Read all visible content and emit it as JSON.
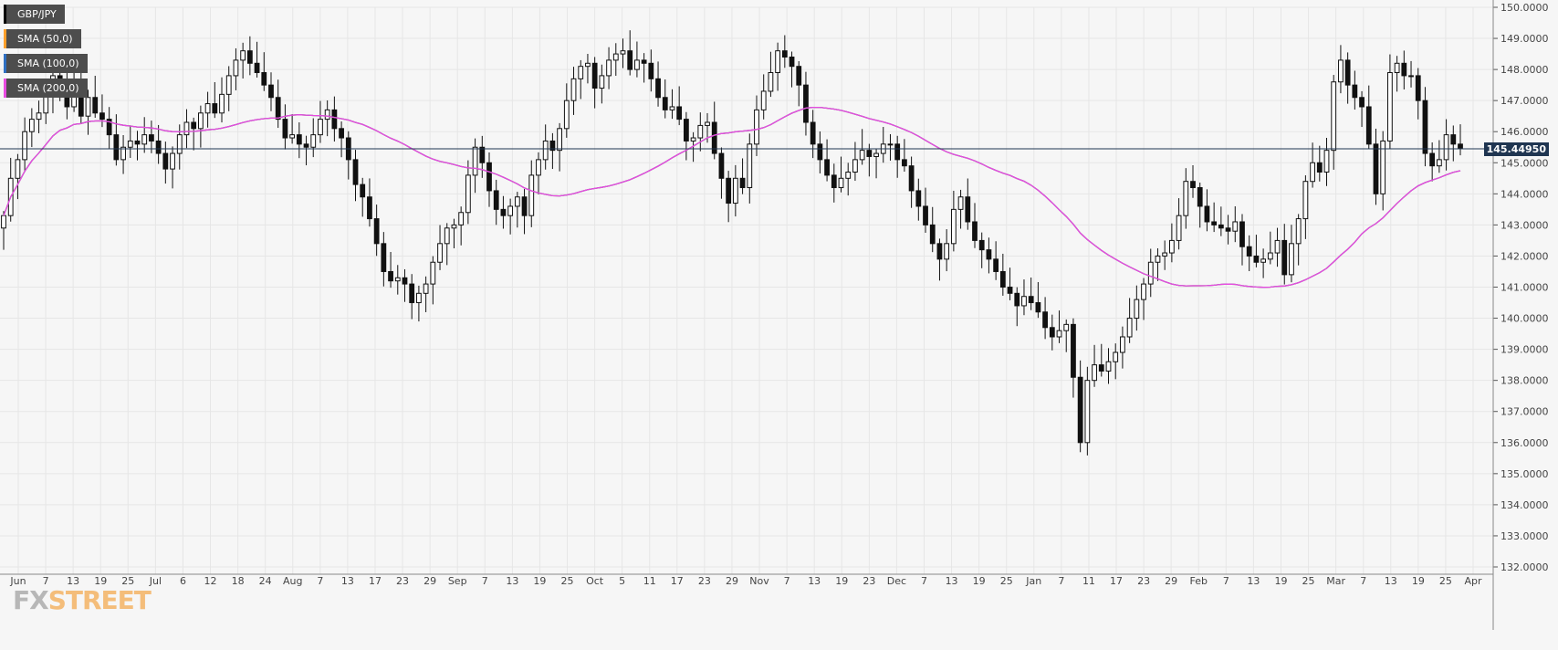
{
  "chart_data": {
    "type": "candlestick",
    "title": "",
    "ylim": [
      132.0,
      150.0
    ],
    "y_ticks": [
      "132.0000",
      "133.0000",
      "134.0000",
      "135.0000",
      "136.0000",
      "137.0000",
      "138.0000",
      "139.0000",
      "140.0000",
      "141.0000",
      "142.0000",
      "143.0000",
      "144.0000",
      "145.0000",
      "146.0000",
      "147.0000",
      "148.0000",
      "149.0000",
      "150.0000"
    ],
    "x_ticks": [
      "Jun",
      "7",
      "13",
      "19",
      "25",
      "Jul",
      "6",
      "12",
      "18",
      "24",
      "Aug",
      "7",
      "13",
      "17",
      "23",
      "29",
      "Sep",
      "7",
      "13",
      "19",
      "25",
      "Oct",
      "5",
      "11",
      "17",
      "23",
      "29",
      "Nov",
      "7",
      "13",
      "19",
      "23",
      "Dec",
      "7",
      "13",
      "19",
      "25",
      "Jan",
      "7",
      "11",
      "17",
      "23",
      "29",
      "Feb",
      "7",
      "13",
      "19",
      "25",
      "Mar",
      "7",
      "13",
      "19",
      "25",
      "Apr"
    ],
    "last_price": "145.44950",
    "legend": [
      {
        "name": "GBP/JPY",
        "color": "#000000"
      },
      {
        "name": "SMA (50,0)",
        "color": "#ff9f2a"
      },
      {
        "name": "SMA (100,0)",
        "color": "#2f6fc1"
      },
      {
        "name": "SMA (200,0)",
        "color": "#e84be0"
      }
    ],
    "close_series": [
      143.3,
      144.5,
      145.1,
      146.0,
      146.4,
      146.6,
      147.2,
      147.8,
      147.5,
      146.8,
      147.4,
      146.5,
      147.1,
      146.6,
      146.4,
      145.9,
      145.1,
      145.5,
      145.7,
      145.6,
      145.9,
      145.7,
      145.3,
      144.8,
      145.3,
      145.9,
      146.3,
      146.1,
      146.6,
      146.9,
      146.6,
      147.2,
      147.8,
      148.3,
      148.6,
      148.2,
      147.9,
      147.5,
      147.1,
      146.4,
      145.8,
      145.9,
      145.6,
      145.5,
      145.9,
      146.4,
      146.7,
      146.1,
      145.8,
      145.1,
      144.3,
      143.9,
      143.2,
      142.4,
      141.5,
      141.2,
      141.3,
      141.1,
      140.5,
      140.8,
      141.1,
      141.8,
      142.4,
      142.9,
      143.0,
      143.4,
      144.6,
      145.5,
      145.0,
      144.1,
      143.5,
      143.3,
      143.6,
      143.9,
      143.3,
      144.6,
      145.1,
      145.7,
      145.4,
      146.1,
      147.0,
      147.7,
      148.1,
      148.2,
      147.4,
      147.8,
      148.3,
      148.5,
      148.6,
      148.0,
      148.3,
      148.2,
      147.7,
      147.1,
      146.7,
      146.8,
      146.4,
      145.7,
      145.8,
      146.2,
      146.3,
      145.3,
      144.5,
      143.7,
      144.5,
      144.2,
      145.6,
      146.7,
      147.3,
      147.9,
      148.6,
      148.4,
      148.1,
      147.5,
      146.3,
      145.6,
      145.1,
      144.6,
      144.2,
      144.5,
      144.7,
      145.1,
      145.4,
      145.2,
      145.3,
      145.6,
      145.6,
      145.1,
      144.9,
      144.1,
      143.6,
      143.0,
      142.4,
      141.9,
      142.4,
      143.5,
      143.9,
      143.1,
      142.5,
      142.2,
      141.9,
      141.5,
      141.0,
      140.8,
      140.4,
      140.7,
      140.5,
      140.2,
      139.7,
      139.4,
      139.6,
      139.8,
      138.1,
      136.0,
      138.0,
      138.5,
      138.3,
      138.6,
      138.9,
      139.4,
      140.0,
      140.6,
      141.1,
      141.8,
      142.0,
      142.1,
      142.5,
      143.3,
      144.4,
      144.2,
      143.6,
      143.1,
      143.0,
      142.9,
      142.8,
      143.1,
      142.3,
      142.0,
      141.8,
      141.9,
      142.1,
      142.5,
      141.4,
      142.4,
      143.2,
      144.4,
      145.0,
      144.7,
      145.4,
      147.6,
      148.3,
      147.5,
      147.1,
      146.8,
      145.6,
      144.0,
      145.7,
      147.9,
      148.2,
      147.8,
      147.8,
      147.0,
      145.3,
      144.9,
      145.1,
      145.9,
      145.6,
      145.45
    ]
  },
  "logo": {
    "fx": "FX",
    "street": "STREET"
  }
}
